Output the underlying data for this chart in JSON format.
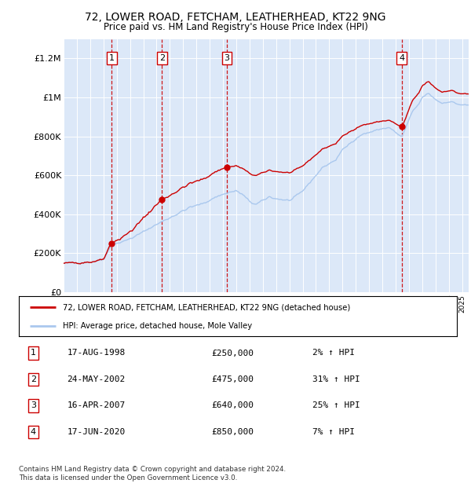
{
  "title": "72, LOWER ROAD, FETCHAM, LEATHERHEAD, KT22 9NG",
  "subtitle": "Price paid vs. HM Land Registry's House Price Index (HPI)",
  "ytick_values": [
    0,
    200000,
    400000,
    600000,
    800000,
    1000000,
    1200000
  ],
  "ylim": [
    0,
    1300000
  ],
  "xlim_start": 1995.0,
  "xlim_end": 2025.5,
  "plot_bg_color": "#dce8f8",
  "hpi_line_color": "#aac8ee",
  "price_line_color": "#cc0000",
  "sale_marker_color": "#cc0000",
  "dashed_line_color": "#cc0000",
  "number_box_color": "#cc0000",
  "grid_color": "#ffffff",
  "purchases": [
    {
      "label": "1",
      "date_str": "17-AUG-1998",
      "price": 250000,
      "price_str": "£250,000",
      "pct": "2%",
      "x": 1998.625
    },
    {
      "label": "2",
      "date_str": "24-MAY-2002",
      "price": 475000,
      "price_str": "£475,000",
      "pct": "31%",
      "x": 2002.4
    },
    {
      "label": "3",
      "date_str": "16-APR-2007",
      "price": 640000,
      "price_str": "£640,000",
      "pct": "25%",
      "x": 2007.3
    },
    {
      "label": "4",
      "date_str": "17-JUN-2020",
      "price": 850000,
      "price_str": "£850,000",
      "pct": "7%",
      "x": 2020.46
    }
  ],
  "legend_entry1": "72, LOWER ROAD, FETCHAM, LEATHERHEAD, KT22 9NG (detached house)",
  "legend_entry2": "HPI: Average price, detached house, Mole Valley",
  "footnote": "Contains HM Land Registry data © Crown copyright and database right 2024.\nThis data is licensed under the Open Government Licence v3.0.",
  "hpi_anchors_t": [
    1995.0,
    1996.0,
    1997.0,
    1997.5,
    1998.0,
    1998.625,
    1999.5,
    2000.5,
    2001.5,
    2002.4,
    2003.5,
    2004.5,
    2005.5,
    2006.5,
    2007.3,
    2008.0,
    2008.5,
    2009.0,
    2009.5,
    2010.0,
    2010.5,
    2011.0,
    2011.5,
    2012.0,
    2012.5,
    2013.0,
    2013.5,
    2014.0,
    2014.5,
    2015.0,
    2015.5,
    2016.0,
    2016.5,
    2017.0,
    2017.5,
    2018.0,
    2018.5,
    2019.0,
    2019.5,
    2020.0,
    2020.46,
    2020.8,
    2021.3,
    2021.8,
    2022.0,
    2022.5,
    2023.0,
    2023.5,
    2024.0,
    2024.5,
    2025.0
  ],
  "hpi_anchors_v": [
    148000,
    152000,
    155000,
    160000,
    170000,
    245000,
    260000,
    290000,
    330000,
    362000,
    400000,
    435000,
    455000,
    490000,
    510000,
    520000,
    500000,
    465000,
    450000,
    470000,
    490000,
    480000,
    475000,
    470000,
    490000,
    520000,
    560000,
    600000,
    640000,
    660000,
    680000,
    730000,
    760000,
    790000,
    810000,
    820000,
    830000,
    840000,
    845000,
    820000,
    795000,
    850000,
    930000,
    970000,
    1000000,
    1020000,
    990000,
    970000,
    980000,
    970000,
    960000
  ]
}
